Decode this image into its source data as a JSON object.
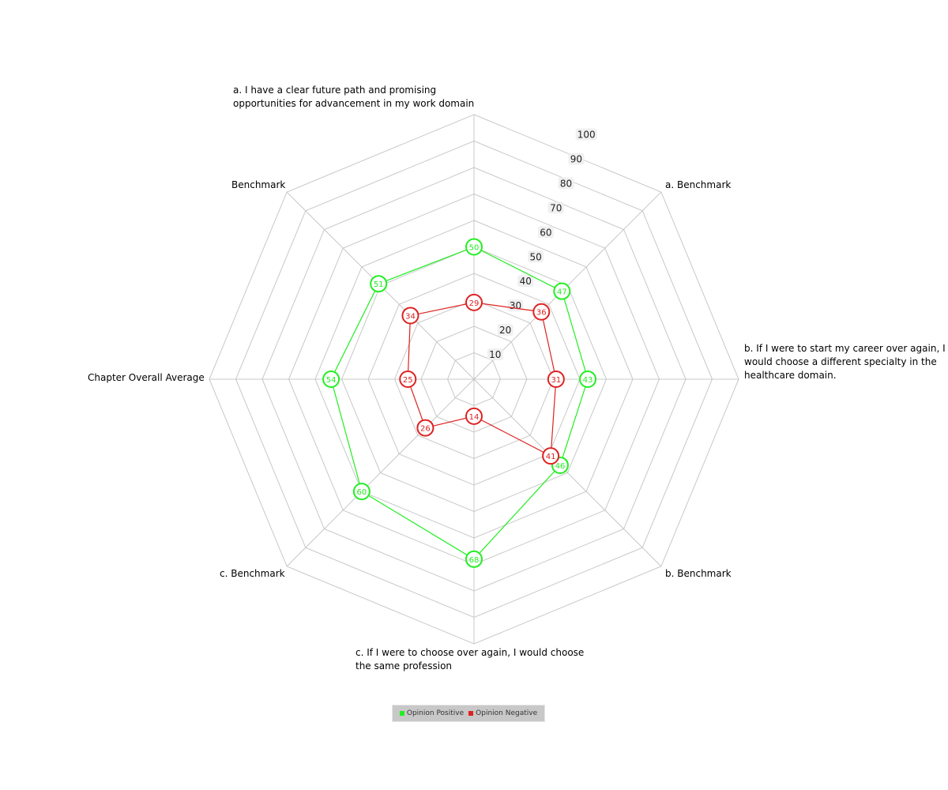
{
  "chart_data": {
    "type": "radar",
    "ylim": [
      0,
      100
    ],
    "ticks": [
      "10",
      "20",
      "30",
      "40",
      "50",
      "60",
      "70",
      "80",
      "90",
      "100"
    ],
    "grid": true,
    "legend_position": "bottom",
    "categories": [
      "a. I have a clear future path and promising\nopportunities for advancement in my work domain",
      "a. Benchmark",
      "b. If I were to start my career over again, I\nwould choose a different specialty in the\nhealthcare domain.",
      "b. Benchmark",
      "c. If I were to choose over again, I would choose\nthe same profession",
      "c. Benchmark",
      "Chapter Overall Average",
      "Benchmark"
    ],
    "series": [
      {
        "name": "Opinion Positive",
        "color": "#22ee22",
        "values": [
          50,
          47,
          43,
          46,
          68,
          60,
          54,
          51
        ]
      },
      {
        "name": "Opinion Negative",
        "color": "#dd2222",
        "values": [
          29,
          36,
          31,
          41,
          14,
          26,
          25,
          34
        ]
      }
    ]
  }
}
